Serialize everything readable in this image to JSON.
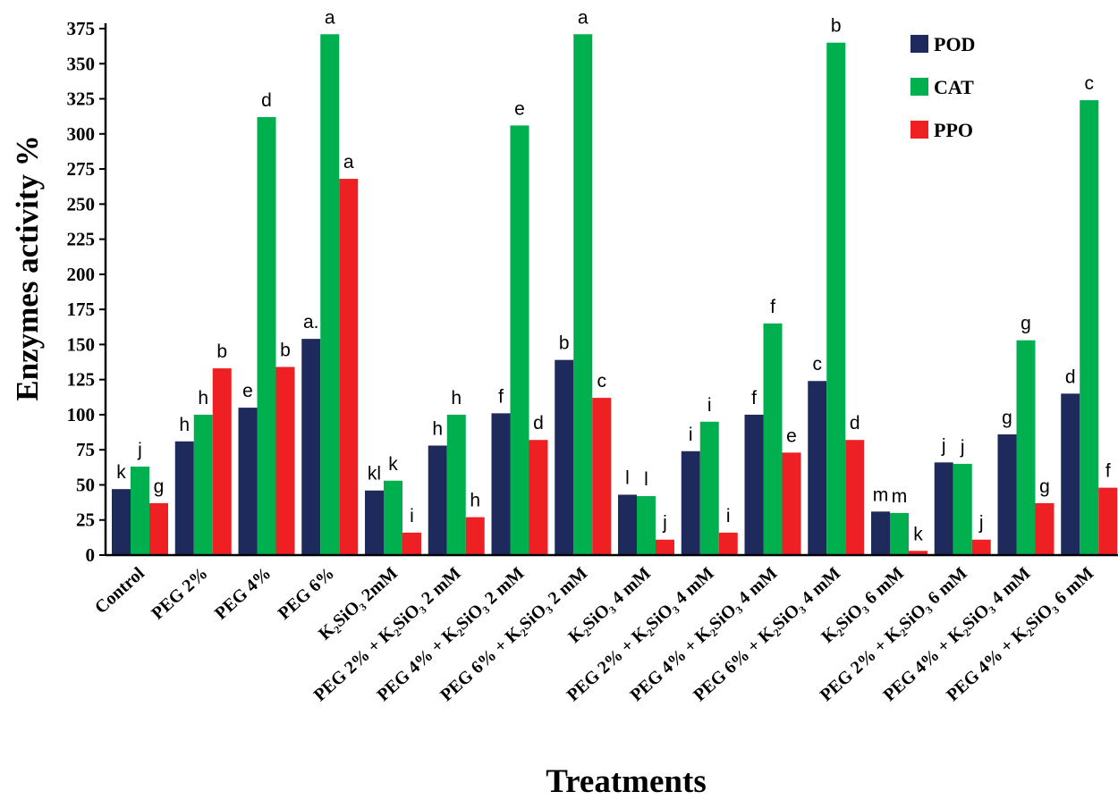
{
  "chart_data": {
    "type": "bar",
    "title": "",
    "xlabel": "Treatments",
    "ylabel": "Enzymes activity %",
    "ylim": [
      0,
      375
    ],
    "yticks": [
      "0",
      "25",
      "50",
      "75",
      "100",
      "125",
      "150",
      "175",
      "200",
      "225",
      "250",
      "275",
      "300",
      "325",
      "350",
      "375"
    ],
    "legend_position": "top-right",
    "grid": false,
    "categories": [
      "Control",
      "PEG 2%",
      "PEG 4%",
      "PEG 6%",
      "K₂SiO₃ 2mM",
      "PEG 2% + K₂SiO₃ 2 mM",
      "PEG 4% + K₂SiO₃ 2 mM",
      "PEG 6% + K₂SiO₃ 2 mM",
      "K₂SiO₃ 4 mM",
      "PEG 2% + K₂SiO₃ 4 mM",
      "PEG 4% + K₂SiO₃ 4 mM",
      "PEG 6% + K₂SiO₃ 4 mM",
      "K₂SiO₃ 6 mM",
      "PEG 2% + K₂SiO₃ 6 mM",
      "PEG 4% + K₂SiO₃ 4 mM",
      "PEG 4% + K₂SiO₃ 6 mM"
    ],
    "series": [
      {
        "name": "POD",
        "color": "#1f2a5c",
        "values": [
          47,
          81,
          105,
          154,
          46,
          78,
          101,
          139,
          43,
          74,
          100,
          124,
          31,
          66,
          86,
          115
        ],
        "labels": [
          "k",
          "h",
          "e",
          "a.",
          "kl",
          "h",
          "f",
          "b",
          "l",
          "i",
          "f",
          "c",
          "m",
          "j",
          "g",
          "d"
        ]
      },
      {
        "name": "CAT",
        "color": "#00b04f",
        "values": [
          63,
          100,
          312,
          371,
          53,
          100,
          306,
          371,
          42,
          95,
          165,
          365,
          30,
          65,
          153,
          324
        ],
        "labels": [
          "j",
          "h",
          "d",
          "a",
          "k",
          "h",
          "e",
          "a",
          "l",
          "i",
          "f",
          "b",
          "m",
          "j",
          "g",
          "c"
        ]
      },
      {
        "name": "PPO",
        "color": "#ee2024",
        "values": [
          37,
          133,
          134,
          268,
          16,
          27,
          82,
          112,
          11,
          16,
          73,
          82,
          3,
          11,
          37,
          48
        ],
        "labels": [
          "g",
          "b",
          "b",
          "a",
          "i",
          "h",
          "d",
          "c",
          "j",
          "i",
          "e",
          "d",
          "k",
          "j",
          "g",
          "f"
        ]
      }
    ]
  }
}
